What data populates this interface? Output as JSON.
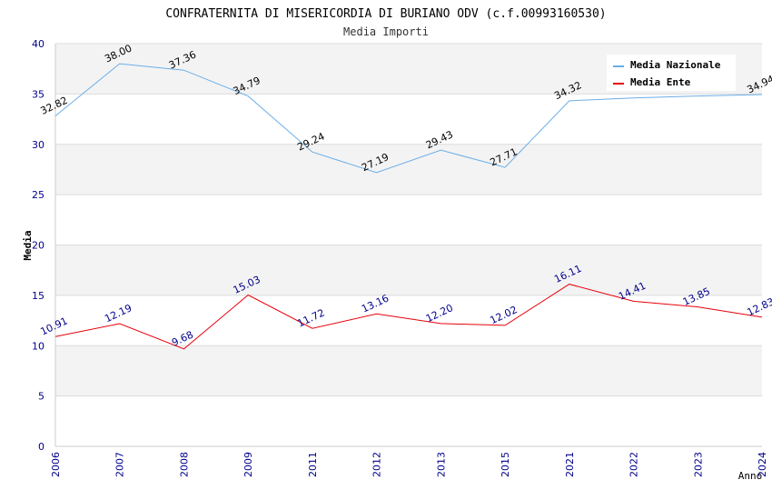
{
  "chart_data": {
    "type": "line",
    "title": "CONFRATERNITA DI MISERICORDIA DI BURIANO ODV (c.f.00993160530)",
    "subtitle": "Media Importi",
    "xlabel": "Anno",
    "ylabel": "Media",
    "ylim": [
      0,
      40
    ],
    "yticks": [
      "0",
      "5",
      "10",
      "15",
      "20",
      "25",
      "30",
      "35",
      "40"
    ],
    "categories": [
      "2006",
      "2007",
      "2008",
      "2009",
      "2011",
      "2012",
      "2013",
      "2015",
      "2021",
      "2022",
      "2023",
      "2024"
    ],
    "grid": true,
    "legend_position": "top-right",
    "series": [
      {
        "name": "Media Nazionale",
        "color": "#6aaee8",
        "label_color": "#000000",
        "values": [
          32.82,
          38.0,
          37.36,
          34.79,
          29.24,
          27.19,
          29.43,
          27.71,
          34.32,
          null,
          null,
          34.94
        ],
        "line_values": [
          32.82,
          38.0,
          37.36,
          34.79,
          29.24,
          27.19,
          29.43,
          27.71,
          34.32,
          34.6,
          34.8,
          34.94
        ],
        "labels": [
          "32.82",
          "38.00",
          "37.36",
          "34.79",
          "29.24",
          "27.19",
          "29.43",
          "27.71",
          "34.32",
          "",
          "",
          "34.94"
        ]
      },
      {
        "name": "Media Ente",
        "color": "#e8000b",
        "label_color": "#00008b",
        "values": [
          10.91,
          12.19,
          9.68,
          15.03,
          11.72,
          13.16,
          12.2,
          12.02,
          16.11,
          14.41,
          13.85,
          12.83
        ],
        "line_values": [
          10.91,
          12.19,
          9.68,
          15.03,
          11.72,
          13.16,
          12.2,
          12.02,
          16.11,
          14.41,
          13.85,
          12.83
        ],
        "labels": [
          "10.91",
          "12.19",
          "9.68",
          "15.03",
          "11.72",
          "13.16",
          "12.20",
          "12.02",
          "16.11",
          "14.41",
          "13.85",
          "12.83"
        ]
      }
    ]
  }
}
